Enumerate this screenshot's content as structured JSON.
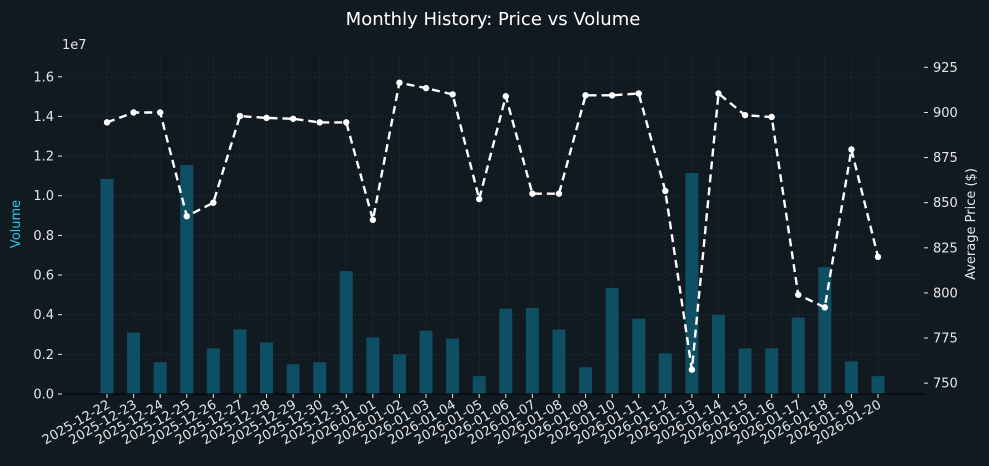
{
  "chart_data": {
    "type": "bar+line",
    "title": "Monthly History: Price vs Volume",
    "categories": [
      "2025-12-22",
      "2025-12-23",
      "2025-12-24",
      "2025-12-25",
      "2025-12-26",
      "2025-12-27",
      "2025-12-28",
      "2025-12-29",
      "2025-12-30",
      "2025-12-31",
      "2026-01-01",
      "2026-01-02",
      "2026-01-03",
      "2026-01-04",
      "2026-01-05",
      "2026-01-06",
      "2026-01-07",
      "2026-01-08",
      "2026-01-09",
      "2026-01-10",
      "2026-01-11",
      "2026-01-12",
      "2026-01-13",
      "2026-01-14",
      "2026-01-15",
      "2026-01-16",
      "2026-01-17",
      "2026-01-18",
      "2026-01-19",
      "2026-01-20"
    ],
    "series": [
      {
        "name": "Volume",
        "axis": "left",
        "type": "bar",
        "color": "#0e4f63",
        "values": [
          10850000,
          3100000,
          1600000,
          11550000,
          2300000,
          3250000,
          2600000,
          1500000,
          1600000,
          6200000,
          2850000,
          2000000,
          3200000,
          2800000,
          900000,
          4300000,
          4350000,
          3250000,
          1350000,
          5350000,
          3800000,
          2050000,
          11150000,
          4000000,
          2300000,
          2300000,
          3850000,
          6400000,
          1650000,
          900000
        ]
      },
      {
        "name": "Average Price ($)",
        "axis": "right",
        "type": "line",
        "style": "dashed",
        "color": "#ffffff",
        "values": [
          894.5,
          900,
          900,
          842.5,
          850,
          898,
          897,
          896.5,
          894.5,
          894.5,
          840.5,
          916.5,
          913.5,
          910,
          852,
          909,
          855,
          855,
          909.5,
          909.5,
          910.5,
          856.5,
          757.5,
          910.5,
          898.5,
          897.5,
          799,
          792,
          879.5,
          820
        ]
      }
    ],
    "y_left": {
      "label": "Volume",
      "ticks": [
        0,
        2000000,
        4000000,
        6000000,
        8000000,
        10000000,
        12000000,
        14000000,
        16000000
      ],
      "tick_labels": [
        "0.0",
        "0.2",
        "0.4",
        "0.6",
        "0.8",
        "1.0",
        "1.2",
        "1.4",
        "1.6"
      ],
      "offset_label": "1e7",
      "range": [
        0,
        17250000
      ]
    },
    "y_right": {
      "label": "Average Price ($)",
      "ticks": [
        750,
        775,
        800,
        825,
        850,
        875,
        900,
        925
      ],
      "tick_labels": [
        "750",
        "775",
        "800",
        "825",
        "850",
        "875",
        "900",
        "925"
      ],
      "range": [
        744,
        933.5
      ]
    },
    "grid": true,
    "legend": "none"
  }
}
